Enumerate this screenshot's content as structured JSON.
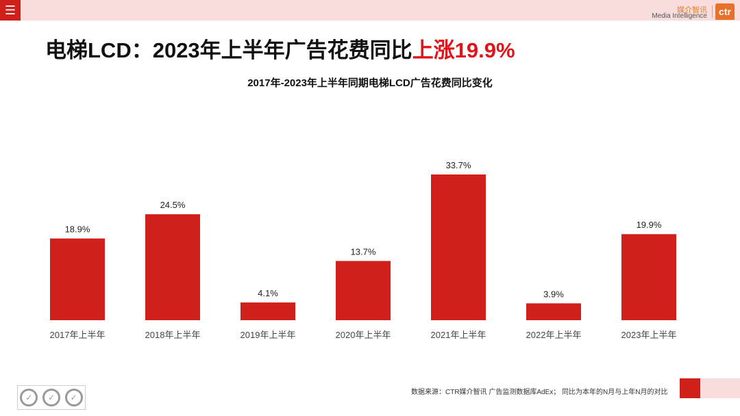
{
  "header": {
    "menu_icon": "hamburger-icon",
    "logo_cn": "媒介智讯",
    "logo_en": "Media Intelligence",
    "logo_mark": "ctr"
  },
  "title": {
    "prefix": "电梯LCD：2023年上半年广告花费同比",
    "highlight": "上涨19.9%"
  },
  "chart_data": {
    "type": "bar",
    "title": "2017年-2023年上半年同期电梯LCD广告花费同比变化",
    "categories": [
      "2017年上半年",
      "2018年上半年",
      "2019年上半年",
      "2020年上半年",
      "2021年上半年",
      "2022年上半年",
      "2023年上半年"
    ],
    "values": [
      18.9,
      24.5,
      4.1,
      13.7,
      33.7,
      3.9,
      19.9
    ],
    "data_labels": [
      "18.9%",
      "24.5%",
      "4.1%",
      "13.7%",
      "33.7%",
      "3.9%",
      "19.9%"
    ],
    "color": "#d0201c",
    "grid": false,
    "xlabel": "",
    "ylabel": ""
  },
  "footer": {
    "source": "数据来源：CTR媒介智讯 广告监测数据库AdEx；  同比为本年的N月与上年N月的对比"
  },
  "colors": {
    "brand_red": "#d0201c",
    "pink": "#f9dcdc",
    "logo_orange": "#e8702a"
  }
}
